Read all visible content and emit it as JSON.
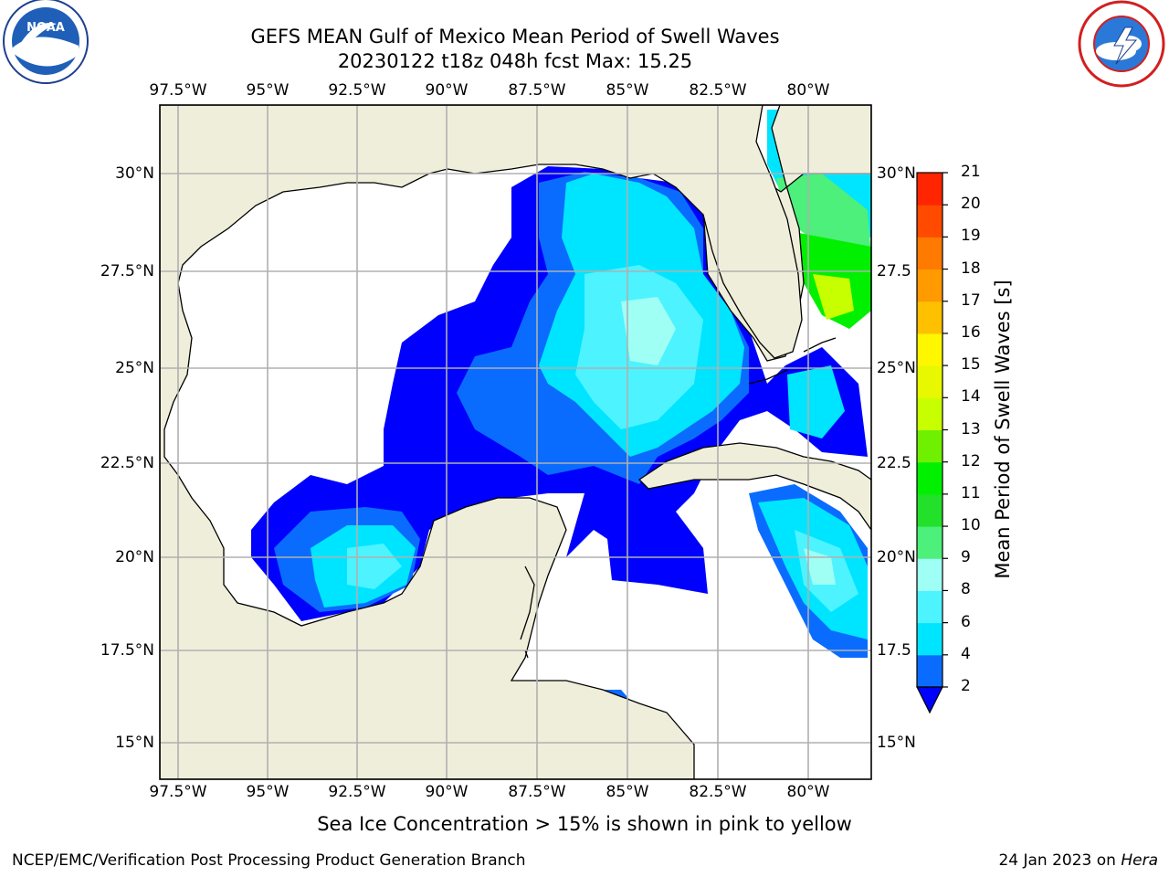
{
  "title": {
    "line1": "GEFS MEAN Gulf of Mexico Mean Period of Swell Waves",
    "line2": "20230122 t18z 048h fcst   Max: 15.25"
  },
  "map": {
    "lon_labels_top": [
      "97.5°W",
      "95°W",
      "92.5°W",
      "90°W",
      "87.5°W",
      "85°W",
      "82.5°W",
      "80°W"
    ],
    "lon_labels_bottom": [
      "97.5°W",
      "95°W",
      "92.5°W",
      "90°W",
      "87.5°W",
      "85°W",
      "82.5°W",
      "80°W"
    ],
    "lat_labels_left": [
      "30°N",
      "27.5°N",
      "25°N",
      "22.5°N",
      "20°N",
      "17.5°N",
      "15°N"
    ],
    "lat_labels_right": [
      "30°N",
      "27.5",
      "25°N",
      "22.5",
      "20°N",
      "17.5",
      "15°N"
    ],
    "colors": {
      "land": "#efeedb",
      "ocean_no_data": "#ffffff",
      "grid": "#b0b0b0",
      "coast": "#000000"
    }
  },
  "colorbar": {
    "label": "Mean Period of Swell Waves [s]",
    "ticks": [
      "2",
      "4",
      "6",
      "8",
      "9",
      "10",
      "11",
      "12",
      "13",
      "14",
      "15",
      "16",
      "17",
      "18",
      "19",
      "20",
      "21"
    ],
    "bins": [
      {
        "from": 2,
        "to": 4,
        "color": "#0a6cff"
      },
      {
        "from": 4,
        "to": 6,
        "color": "#00e5ff"
      },
      {
        "from": 6,
        "to": 8,
        "color": "#4df3ff"
      },
      {
        "from": 8,
        "to": 9,
        "color": "#a0fff5"
      },
      {
        "from": 9,
        "to": 10,
        "color": "#4cf07a"
      },
      {
        "from": 10,
        "to": 11,
        "color": "#23e02a"
      },
      {
        "from": 11,
        "to": 12,
        "color": "#00f000"
      },
      {
        "from": 12,
        "to": 13,
        "color": "#6ff000"
      },
      {
        "from": 13,
        "to": 14,
        "color": "#c8ff00"
      },
      {
        "from": 14,
        "to": 15,
        "color": "#e8f800"
      },
      {
        "from": 15,
        "to": 16,
        "color": "#fff700"
      },
      {
        "from": 16,
        "to": 17,
        "color": "#ffc000"
      },
      {
        "from": 17,
        "to": 18,
        "color": "#ff9a00"
      },
      {
        "from": 18,
        "to": 19,
        "color": "#ff7a00"
      },
      {
        "from": 19,
        "to": 20,
        "color": "#ff4a00"
      },
      {
        "from": 20,
        "to": 21,
        "color": "#ff2500"
      }
    ],
    "under_color": "#0000ff",
    "extend": "min"
  },
  "footer": {
    "note": "Sea Ice Concentration > 15% is shown in pink to yellow",
    "credit": "NCEP/EMC/Verification Post Processing Product Generation Branch",
    "date": "24 Jan 2023 on",
    "host": "Hera"
  },
  "logos": {
    "left": "noaa-logo",
    "right": "national-weather-service-logo"
  }
}
